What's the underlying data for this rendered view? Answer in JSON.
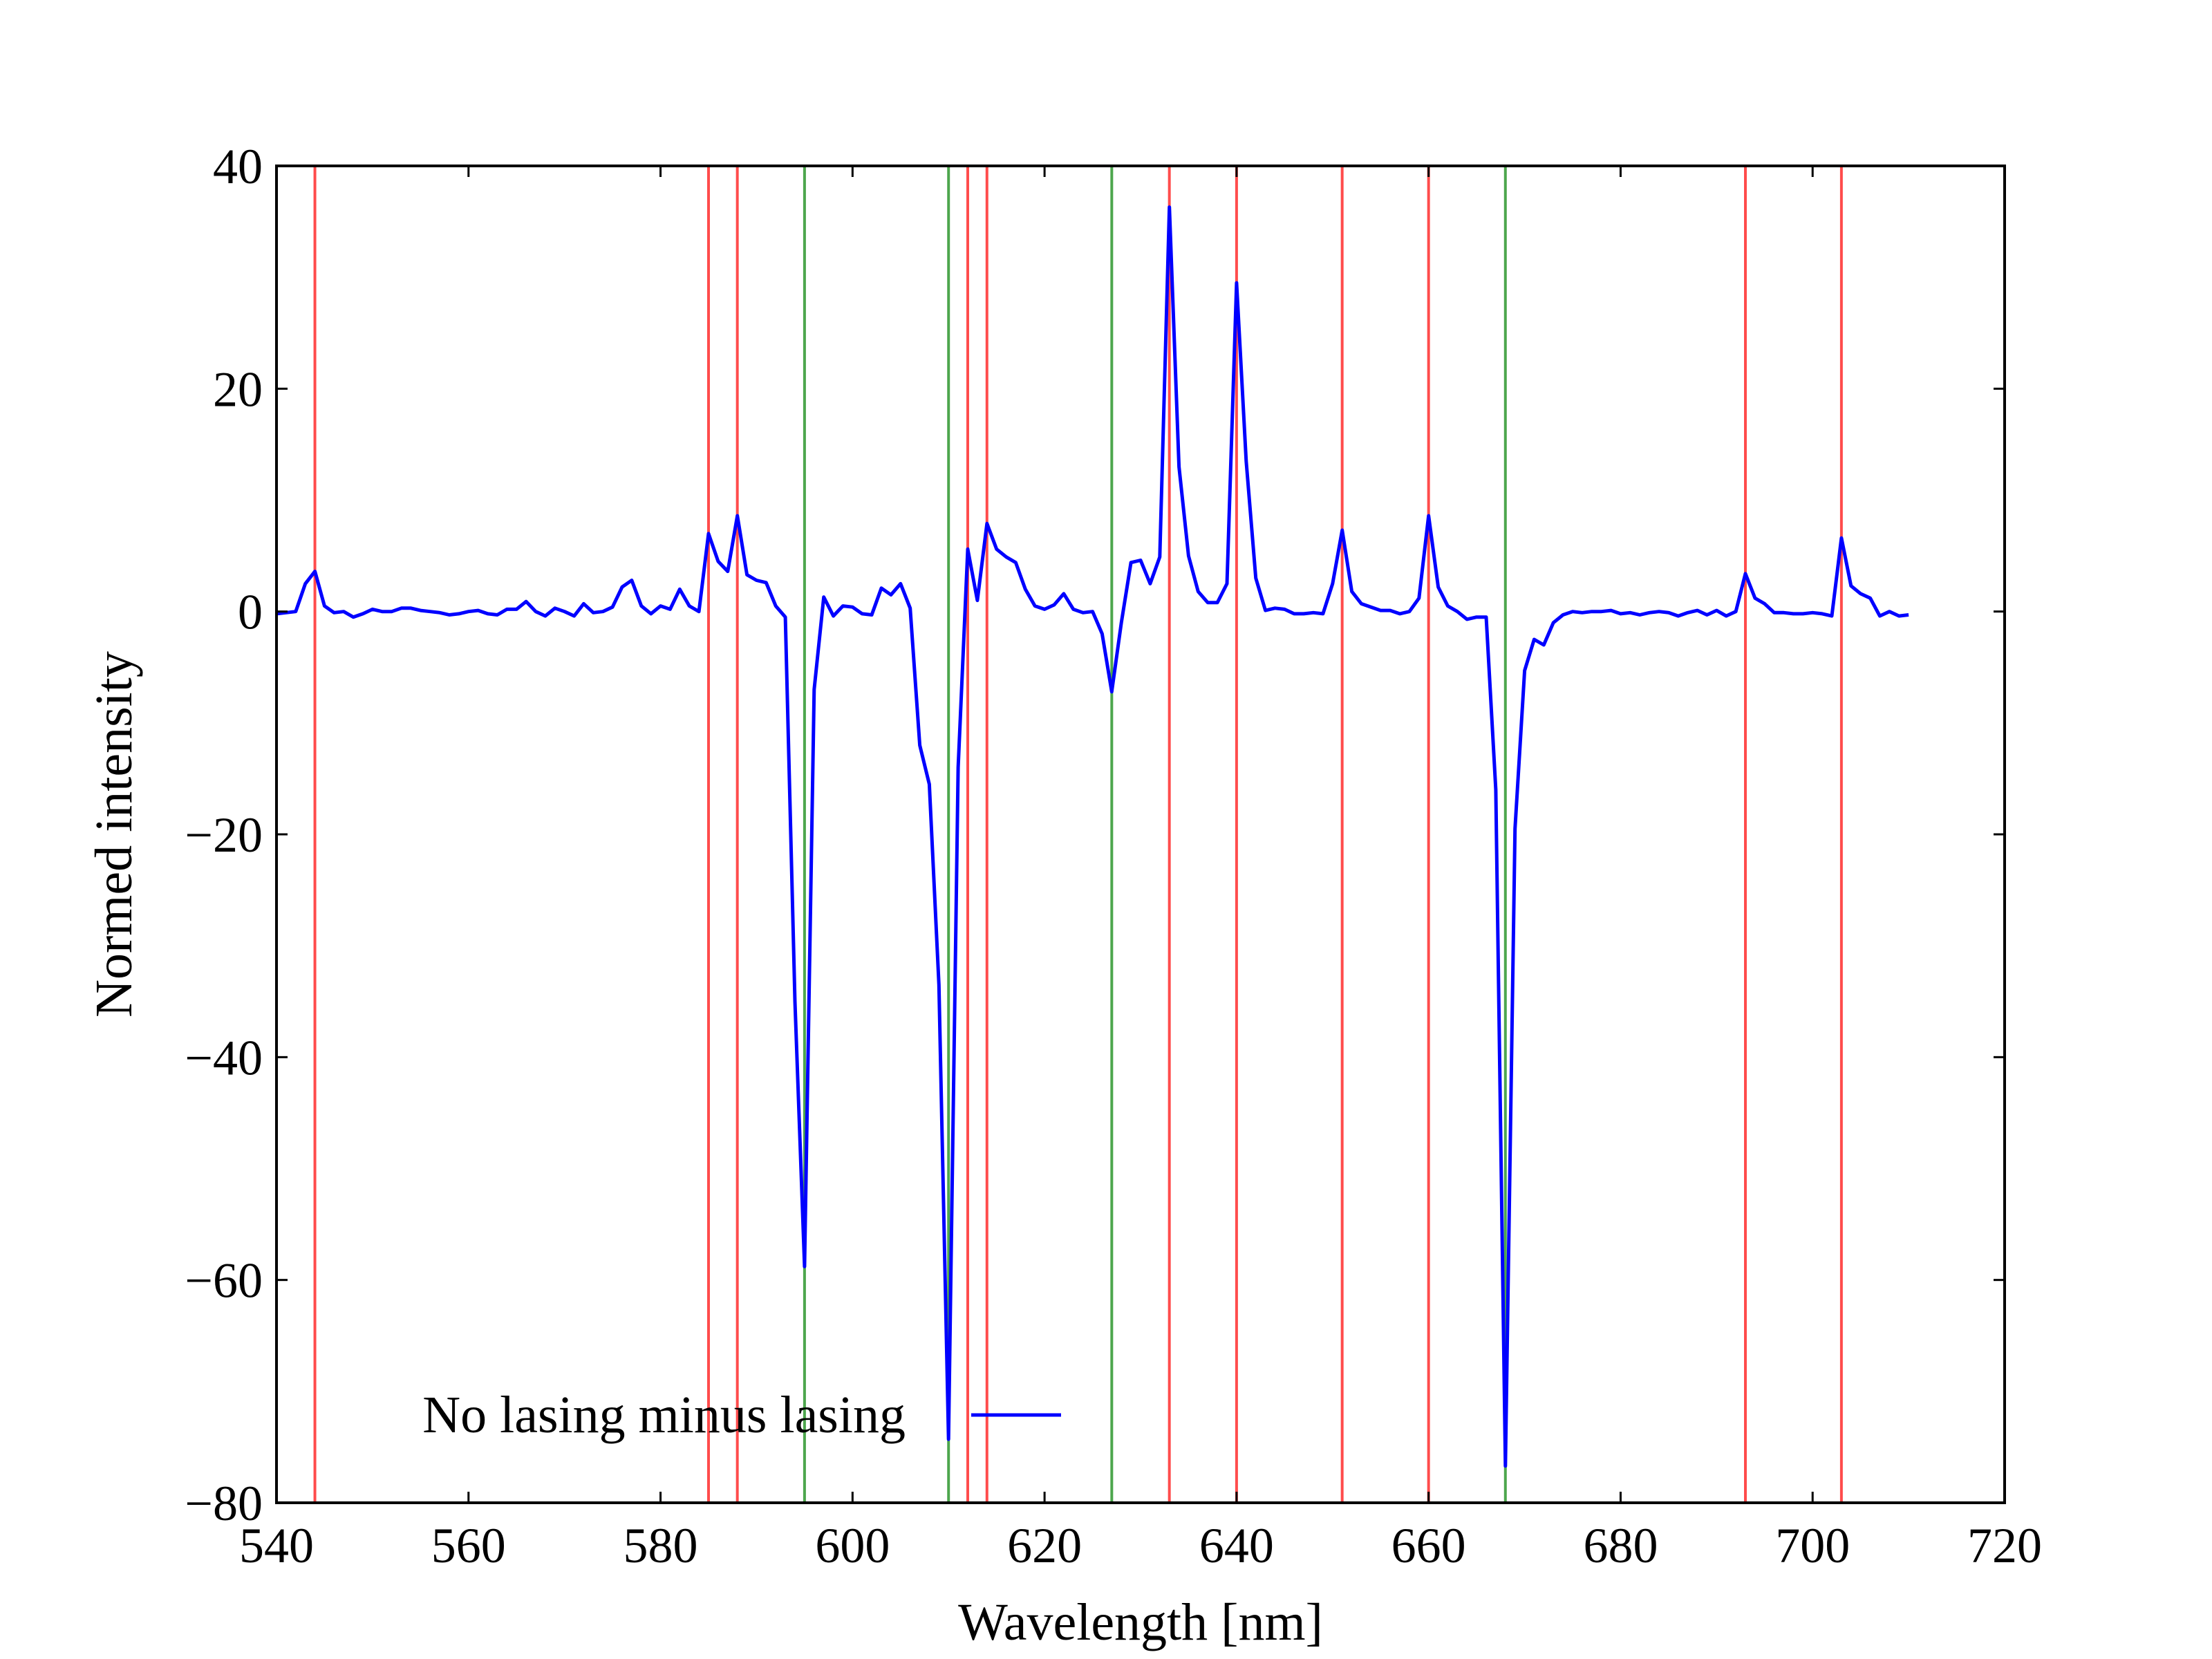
{
  "chart_data": {
    "type": "line",
    "title": "",
    "xlabel": "Wavelength [nm]",
    "ylabel": "Normed intensity",
    "xlim": [
      540,
      720
    ],
    "ylim": [
      -80,
      40
    ],
    "xticks": [
      540,
      560,
      580,
      600,
      620,
      640,
      660,
      680,
      700,
      720
    ],
    "yticks": [
      40,
      20,
      0,
      -20,
      -40,
      -60,
      -80
    ],
    "xtick_labels": [
      "540",
      "560",
      "580",
      "600",
      "620",
      "640",
      "660",
      "680",
      "700",
      "720"
    ],
    "ytick_labels": [
      "40",
      "20",
      "0",
      "−20",
      "−40",
      "−60",
      "−80"
    ],
    "grid": false,
    "legend": {
      "placement": "lower-left",
      "entries": [
        "No lasing minus lasing"
      ]
    },
    "colors": {
      "series": "#0000ff",
      "red_lines": "#ff4c4c",
      "green_lines": "#4da64d"
    },
    "vertical_lines": {
      "red": [
        544,
        585,
        588,
        612,
        614,
        633,
        640,
        651,
        660,
        693,
        703
      ],
      "green": [
        595,
        610,
        627,
        668
      ]
    },
    "series": [
      {
        "name": "No lasing minus lasing",
        "x": [
          540,
          541,
          542,
          543,
          544,
          545,
          546,
          547,
          548,
          549,
          550,
          551,
          552,
          553,
          554,
          555,
          556,
          557,
          558,
          559,
          560,
          561,
          562,
          563,
          564,
          565,
          566,
          567,
          568,
          569,
          570,
          571,
          572,
          573,
          574,
          575,
          576,
          577,
          578,
          579,
          580,
          581,
          582,
          583,
          584,
          585,
          586,
          587,
          588,
          589,
          590,
          591,
          592,
          593,
          594,
          595,
          596,
          597,
          598,
          599,
          600,
          601,
          602,
          603,
          604,
          605,
          606,
          607,
          608,
          609,
          610,
          611,
          612,
          613,
          614,
          615,
          616,
          617,
          618,
          619,
          620,
          621,
          622,
          623,
          624,
          625,
          626,
          627,
          628,
          629,
          630,
          631,
          632,
          633,
          634,
          635,
          636,
          637,
          638,
          639,
          640,
          641,
          642,
          643,
          644,
          645,
          646,
          647,
          648,
          649,
          650,
          651,
          652,
          653,
          654,
          655,
          656,
          657,
          658,
          659,
          660,
          661,
          662,
          663,
          664,
          665,
          666,
          667,
          668,
          669,
          670,
          671,
          672,
          673,
          674,
          675,
          676,
          677,
          678,
          679,
          680,
          681,
          682,
          683,
          684,
          685,
          686,
          687,
          688,
          689,
          690,
          691,
          692,
          693,
          694,
          695,
          696,
          697,
          698,
          699,
          700,
          701,
          702,
          703,
          704,
          705,
          706,
          707,
          708,
          709,
          710
        ],
        "y": [
          -0.2,
          -0.1,
          0.0,
          2.5,
          3.6,
          0.5,
          -0.1,
          0.0,
          -0.5,
          -0.2,
          0.2,
          0.0,
          0.0,
          0.3,
          0.3,
          0.1,
          0.0,
          -0.1,
          -0.3,
          -0.2,
          0.0,
          0.1,
          -0.2,
          -0.3,
          0.2,
          0.2,
          0.9,
          0.0,
          -0.4,
          0.3,
          0.0,
          -0.4,
          0.7,
          -0.1,
          0.0,
          0.4,
          2.2,
          2.8,
          0.5,
          -0.2,
          0.5,
          0.2,
          2.0,
          0.5,
          0.0,
          7.0,
          4.5,
          3.6,
          8.6,
          3.3,
          2.8,
          2.6,
          0.5,
          -0.5,
          -35.0,
          -58.8,
          -7.0,
          1.3,
          -0.4,
          0.5,
          0.4,
          -0.2,
          -0.3,
          2.1,
          1.5,
          2.5,
          0.3,
          -12.0,
          -15.5,
          -33.5,
          -74.3,
          -14.0,
          5.6,
          1.0,
          7.9,
          5.6,
          4.9,
          4.4,
          2.0,
          0.5,
          0.2,
          0.6,
          1.6,
          0.2,
          -0.1,
          0.0,
          -2.0,
          -7.2,
          -1.0,
          4.4,
          4.6,
          2.5,
          4.9,
          36.3,
          13.0,
          5.0,
          1.8,
          0.8,
          0.8,
          2.5,
          29.5,
          13.5,
          3.0,
          0.1,
          0.3,
          0.2,
          -0.2,
          -0.2,
          -0.1,
          -0.2,
          2.5,
          7.3,
          1.8,
          0.7,
          0.4,
          0.1,
          0.1,
          -0.2,
          0.0,
          1.2,
          8.6,
          2.2,
          0.5,
          0.0,
          -0.7,
          -0.5,
          -0.5,
          -16.0,
          -76.7,
          -19.5,
          -5.3,
          -2.5,
          -3.0,
          -1.0,
          -0.3,
          0.0,
          -0.1,
          0.0,
          0.0,
          0.1,
          -0.2,
          -0.1,
          -0.3,
          -0.1,
          0.0,
          -0.1,
          -0.4,
          -0.1,
          0.1,
          -0.3,
          0.1,
          -0.4,
          0.0,
          3.4,
          1.2,
          0.7,
          -0.1,
          -0.1,
          -0.2,
          -0.2,
          -0.1,
          -0.2,
          -0.4,
          6.6,
          2.3,
          1.6,
          1.2,
          -0.4,
          0.0,
          -0.4,
          -0.3
        ]
      }
    ]
  }
}
